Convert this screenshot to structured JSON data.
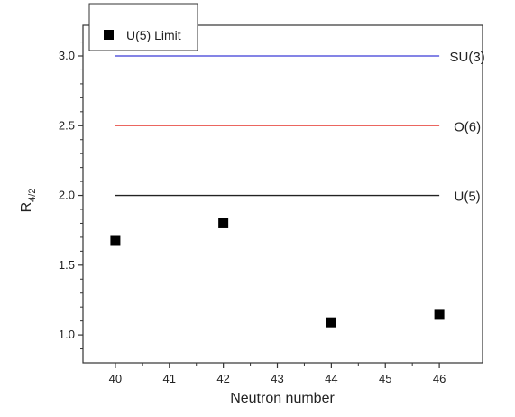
{
  "chart_data": {
    "type": "scatter",
    "xlabel": "Neutron number",
    "ylabel": "R",
    "ylabel_sub": "4/2",
    "xlim": [
      39.4,
      46.8
    ],
    "ylim": [
      0.8,
      3.22
    ],
    "x_ticks": [
      40,
      41,
      42,
      43,
      44,
      45,
      46
    ],
    "y_ticks": [
      1.0,
      1.5,
      2.0,
      2.5,
      3.0
    ],
    "y_tick_labels": [
      "1.0",
      "1.5",
      "2.0",
      "2.5",
      "3.0"
    ],
    "series": [
      {
        "name": "U(5) Limit",
        "marker": "square",
        "color": "#000000",
        "x": [
          40,
          42,
          44,
          46
        ],
        "y": [
          1.68,
          1.8,
          1.09,
          1.15
        ]
      }
    ],
    "reference_lines": [
      {
        "label": "SU(3)",
        "y": 3.0,
        "color": "#3a3ad6",
        "x_from": 40,
        "x_to": 46
      },
      {
        "label": "O(6)",
        "y": 2.5,
        "color": "#e8504a",
        "x_from": 40,
        "x_to": 46
      },
      {
        "label": "U(5)",
        "y": 2.0,
        "color": "#222222",
        "x_from": 40,
        "x_to": 46
      }
    ],
    "legend_position": "top-left",
    "grid": false
  }
}
